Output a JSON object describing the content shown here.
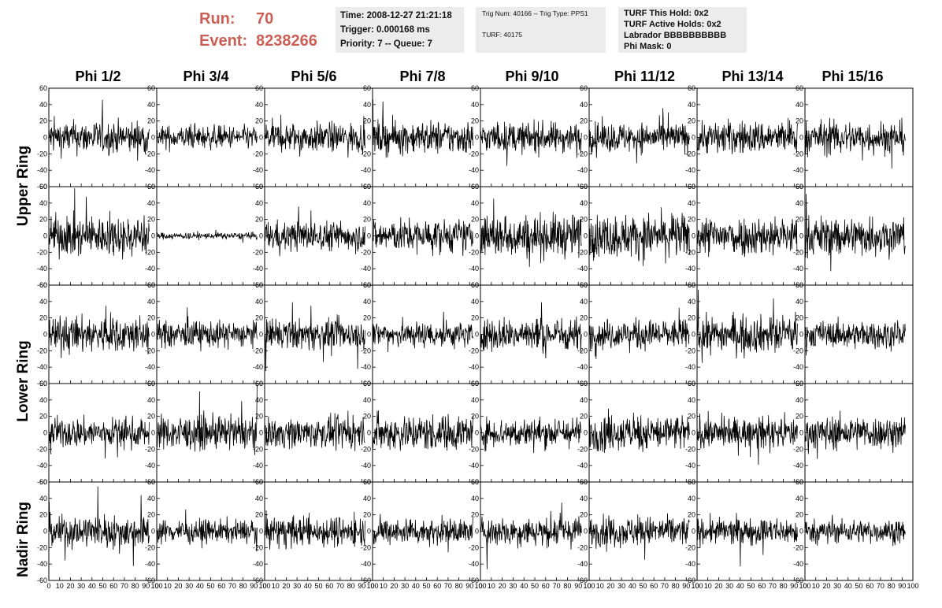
{
  "header": {
    "run_label": "Run:",
    "run_value": "70",
    "event_label": "Event:",
    "event_value": "8238266",
    "time": "Time: 2008-12-27 21:21:18",
    "trigger": "Trigger: 0.000168 ms",
    "priority": "Priority: 7 -- Queue: 7",
    "trig_num": "Trig Num: 40166 -- Trig Type: PPS1",
    "turf": "TURF: 40175",
    "turf_this_hold": "TURF This Hold: 0x2",
    "turf_active_holds": "TURF Active Holds: 0x2",
    "labrador": "Labrador BBBBBBBBBB",
    "phi_mask": "Phi Mask: 0"
  },
  "colors": {
    "accent": "#cc5f55",
    "info_bg": "#ececec",
    "trace": "#000000"
  },
  "chart_data": {
    "type": "line",
    "columns": [
      "Phi 1/2",
      "Phi 3/4",
      "Phi 5/6",
      "Phi 7/8",
      "Phi 9/10",
      "Phi 11/12",
      "Phi 13/14",
      "Phi 15/16"
    ],
    "rows": [
      "Upper Ring",
      "Lower Ring",
      "Nadir Ring"
    ],
    "xlim": [
      0,
      100
    ],
    "ylim": [
      -60,
      60
    ],
    "x_ticks": [
      "0",
      "10",
      "20",
      "30",
      "40",
      "50",
      "60",
      "70",
      "80",
      "90",
      "100"
    ],
    "y_ticks": [
      "60",
      "40",
      "20",
      "0",
      "-20",
      "-40",
      "-60"
    ],
    "grid": false,
    "panel_amplitude": [
      [
        10,
        7,
        9,
        10,
        9,
        9,
        10,
        10
      ],
      [
        12,
        2,
        9,
        10,
        13,
        13,
        12,
        12
      ],
      [
        11,
        8,
        9,
        8,
        10,
        9,
        11,
        8
      ],
      [
        9,
        10,
        9,
        11,
        9,
        11,
        9,
        10
      ],
      [
        10,
        7,
        9,
        8,
        9,
        9,
        8,
        7
      ]
    ]
  }
}
